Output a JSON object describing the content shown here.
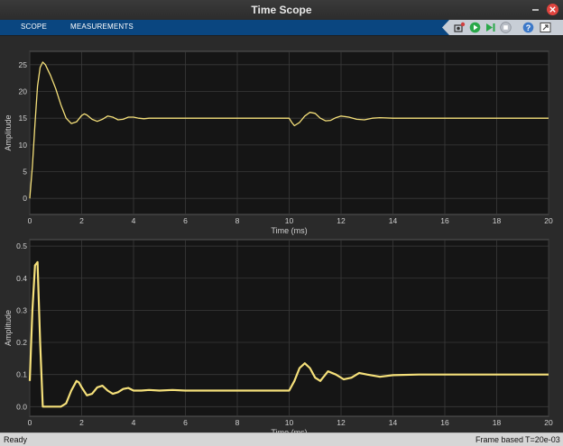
{
  "window": {
    "title": "Time Scope"
  },
  "toolstrip": {
    "tabs": [
      {
        "label": "SCOPE"
      },
      {
        "label": "MEASUREMENTS"
      }
    ]
  },
  "toolbar": {
    "buttons": [
      "snapshot-icon",
      "run-icon",
      "step-forward-icon",
      "stop-icon",
      "help-icon",
      "undock-icon"
    ]
  },
  "colors": {
    "trace": "#f5e07a",
    "axes_bg": "#151515",
    "grid": "#3a3a3a",
    "tick_text": "#d0d0d0",
    "toolstrip": "#0a4680"
  },
  "status": {
    "left": "Ready",
    "mode": "Frame based",
    "time": "T=20e-03"
  },
  "chart_data": [
    {
      "type": "line",
      "xlabel": "Time (ms)",
      "ylabel": "Amplitude",
      "xlim": [
        0,
        20
      ],
      "ylim": [
        -3,
        27.5
      ],
      "xticks": [
        0,
        2,
        4,
        6,
        8,
        10,
        12,
        14,
        16,
        18,
        20
      ],
      "yticks": [
        0,
        5,
        10,
        15,
        20,
        25
      ],
      "grid": true,
      "series": [
        {
          "x": [
            0,
            0.1,
            0.2,
            0.3,
            0.4,
            0.5,
            0.6,
            0.8,
            1.0,
            1.2,
            1.4,
            1.6,
            1.8,
            2.0,
            2.1,
            2.2,
            2.4,
            2.6,
            2.8,
            3.0,
            3.2,
            3.4,
            3.6,
            3.8,
            4.0,
            4.2,
            4.4,
            4.6,
            5.0,
            5.4,
            6.0,
            7.0,
            8.0,
            9.0,
            10.0,
            10.1,
            10.2,
            10.4,
            10.6,
            10.8,
            11.0,
            11.2,
            11.4,
            11.6,
            11.8,
            12.0,
            12.3,
            12.6,
            12.9,
            13.2,
            13.5,
            14.0,
            15.0,
            16.0,
            18.0,
            20.0
          ],
          "y": [
            0,
            6,
            14,
            21,
            24.5,
            25.5,
            25,
            23,
            20.5,
            17.5,
            15,
            14,
            14.3,
            15.5,
            15.8,
            15.6,
            14.8,
            14.4,
            14.8,
            15.4,
            15.2,
            14.7,
            14.8,
            15.2,
            15.2,
            15.0,
            14.9,
            15.0,
            15.0,
            15.0,
            15.0,
            15.0,
            15.0,
            15.0,
            15.0,
            14.2,
            13.6,
            14.2,
            15.4,
            16.1,
            15.9,
            15.0,
            14.5,
            14.6,
            15.1,
            15.4,
            15.2,
            14.8,
            14.7,
            15.0,
            15.1,
            15.0,
            15.0,
            15.0,
            15.0,
            15.0
          ]
        }
      ]
    },
    {
      "type": "line",
      "xlabel": "Time (ms)",
      "ylabel": "Amplitude",
      "xlim": [
        0,
        20
      ],
      "ylim": [
        -0.03,
        0.52
      ],
      "xticks": [
        0,
        2,
        4,
        6,
        8,
        10,
        12,
        14,
        16,
        18,
        20
      ],
      "yticks": [
        0,
        0.1,
        0.2,
        0.3,
        0.4,
        0.5
      ],
      "grid": true,
      "series": [
        {
          "x": [
            0,
            0.1,
            0.2,
            0.3,
            0.4,
            0.5,
            0.6,
            1.2,
            1.4,
            1.6,
            1.8,
            1.9,
            2.0,
            2.2,
            2.4,
            2.6,
            2.8,
            3.0,
            3.2,
            3.4,
            3.6,
            3.8,
            4.0,
            4.3,
            4.6,
            5.0,
            5.5,
            6.0,
            7.0,
            8.0,
            9.0,
            10.0,
            10.2,
            10.4,
            10.6,
            10.8,
            11.0,
            11.2,
            11.5,
            11.8,
            12.1,
            12.4,
            12.7,
            13.0,
            13.5,
            14.0,
            15.0,
            16.0,
            18.0,
            20.0
          ],
          "y": [
            0.08,
            0.3,
            0.44,
            0.45,
            0.2,
            0.0,
            0.0,
            0.0,
            0.01,
            0.05,
            0.08,
            0.075,
            0.06,
            0.035,
            0.04,
            0.06,
            0.065,
            0.05,
            0.04,
            0.045,
            0.055,
            0.058,
            0.05,
            0.05,
            0.052,
            0.05,
            0.052,
            0.05,
            0.05,
            0.05,
            0.05,
            0.05,
            0.08,
            0.12,
            0.135,
            0.12,
            0.09,
            0.08,
            0.11,
            0.1,
            0.085,
            0.09,
            0.105,
            0.1,
            0.093,
            0.098,
            0.1,
            0.1,
            0.1,
            0.1
          ]
        }
      ]
    }
  ]
}
